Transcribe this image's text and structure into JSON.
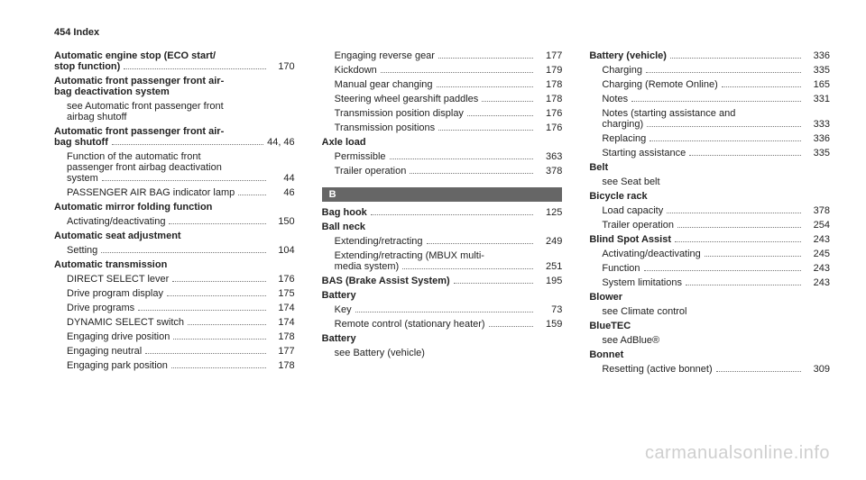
{
  "header": {
    "page_num": "454",
    "section": "Index"
  },
  "watermark": "carmanualsonline.info",
  "section_letter": "B",
  "col1": [
    {
      "type": "topicline",
      "label": "Automatic engine stop (ECO start/\nstop function)",
      "page": "170"
    },
    {
      "type": "topic",
      "label": "Automatic front passenger front air-\nbag deactivation system"
    },
    {
      "type": "sub-noline",
      "label": "see Automatic front passenger front\nairbag shutoff"
    },
    {
      "type": "topicline",
      "label": "Automatic front passenger front air-\nbag shutoff",
      "page": "44, 46"
    },
    {
      "type": "subline",
      "label": "Function of the automatic front\npassenger front airbag deactivation\nsystem",
      "page": "44"
    },
    {
      "type": "subline",
      "label": "PASSENGER AIR BAG indicator lamp",
      "page": "46"
    },
    {
      "type": "topic",
      "label": "Automatic mirror folding function"
    },
    {
      "type": "subline",
      "label": "Activating/deactivating",
      "page": "150"
    },
    {
      "type": "topic",
      "label": "Automatic seat adjustment"
    },
    {
      "type": "subline",
      "label": "Setting",
      "page": "104"
    },
    {
      "type": "topic",
      "label": "Automatic transmission"
    },
    {
      "type": "subline",
      "label": "DIRECT SELECT lever",
      "page": "176"
    },
    {
      "type": "subline",
      "label": "Drive program display",
      "page": "175"
    },
    {
      "type": "subline",
      "label": "Drive programs",
      "page": "174"
    },
    {
      "type": "subline",
      "label": "DYNAMIC SELECT switch",
      "page": "174"
    },
    {
      "type": "subline",
      "label": "Engaging drive position",
      "page": "178"
    },
    {
      "type": "subline",
      "label": "Engaging neutral",
      "page": "177"
    },
    {
      "type": "subline",
      "label": "Engaging park position",
      "page": "178"
    }
  ],
  "col2": [
    {
      "type": "subline",
      "label": "Engaging reverse gear",
      "page": "177"
    },
    {
      "type": "subline",
      "label": "Kickdown",
      "page": "179"
    },
    {
      "type": "subline",
      "label": "Manual gear changing",
      "page": "178"
    },
    {
      "type": "subline",
      "label": "Steering wheel gearshift paddles",
      "page": "178"
    },
    {
      "type": "subline",
      "label": "Transmission position display",
      "page": "176"
    },
    {
      "type": "subline",
      "label": "Transmission positions",
      "page": "176"
    },
    {
      "type": "topic",
      "label": "Axle load"
    },
    {
      "type": "subline",
      "label": "Permissible",
      "page": "363"
    },
    {
      "type": "subline",
      "label": "Trailer operation",
      "page": "378"
    },
    {
      "type": "letter"
    },
    {
      "type": "topicline",
      "label": "Bag hook",
      "page": "125"
    },
    {
      "type": "topic",
      "label": "Ball neck"
    },
    {
      "type": "subline",
      "label": "Extending/retracting",
      "page": "249"
    },
    {
      "type": "subline",
      "label": "Extending/retracting (MBUX multi-\nmedia system)",
      "page": "251"
    },
    {
      "type": "topicline",
      "label": "BAS (Brake Assist System)",
      "page": "195"
    },
    {
      "type": "topic",
      "label": "Battery"
    },
    {
      "type": "subline",
      "label": "Key",
      "page": "73"
    },
    {
      "type": "subline",
      "label": "Remote control (stationary heater)",
      "page": "159"
    },
    {
      "type": "topic",
      "label": "Battery"
    },
    {
      "type": "sub-noline",
      "label": "see Battery (vehicle)"
    }
  ],
  "col3": [
    {
      "type": "topicline",
      "label": "Battery (vehicle)",
      "page": "336"
    },
    {
      "type": "subline",
      "label": "Charging",
      "page": "335"
    },
    {
      "type": "subline",
      "label": "Charging (Remote Online)",
      "page": "165"
    },
    {
      "type": "subline",
      "label": "Notes",
      "page": "331"
    },
    {
      "type": "subline",
      "label": "Notes (starting assistance and\ncharging)",
      "page": "333"
    },
    {
      "type": "subline",
      "label": "Replacing",
      "page": "336"
    },
    {
      "type": "subline",
      "label": "Starting assistance",
      "page": "335"
    },
    {
      "type": "topic",
      "label": "Belt"
    },
    {
      "type": "sub-noline",
      "label": "see Seat belt"
    },
    {
      "type": "topic",
      "label": "Bicycle rack"
    },
    {
      "type": "subline",
      "label": "Load capacity",
      "page": "378"
    },
    {
      "type": "subline",
      "label": "Trailer operation",
      "page": "254"
    },
    {
      "type": "topicline",
      "label": "Blind Spot Assist",
      "page": "243"
    },
    {
      "type": "subline",
      "label": "Activating/deactivating",
      "page": "245"
    },
    {
      "type": "subline",
      "label": "Function",
      "page": "243"
    },
    {
      "type": "subline",
      "label": "System limitations",
      "page": "243"
    },
    {
      "type": "topic",
      "label": "Blower"
    },
    {
      "type": "sub-noline",
      "label": "see Climate control"
    },
    {
      "type": "topic",
      "label": "BlueTEC"
    },
    {
      "type": "sub-noline",
      "label": "see AdBlue®"
    },
    {
      "type": "topic",
      "label": "Bonnet"
    },
    {
      "type": "subline",
      "label": "Resetting (active bonnet)",
      "page": "309"
    }
  ]
}
